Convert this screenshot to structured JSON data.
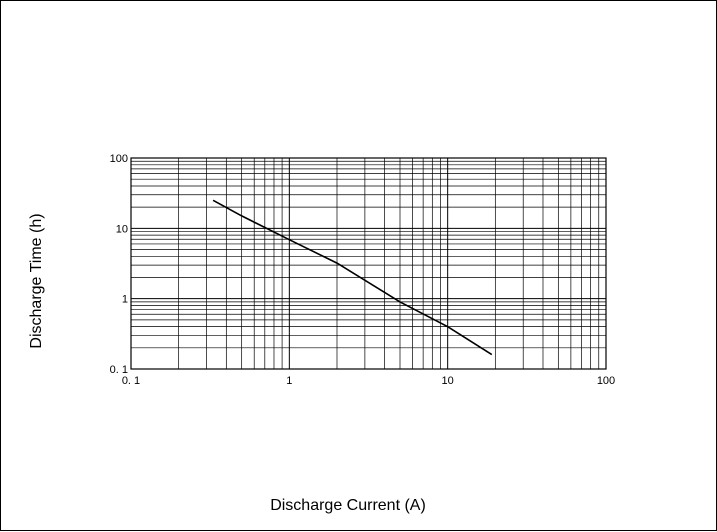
{
  "chart_data": {
    "type": "line",
    "title": "",
    "xlabel": "Discharge Current (A)",
    "ylabel": "Discharge Time (h)",
    "x_scale": "log",
    "y_scale": "log",
    "xlim": [
      0.1,
      100
    ],
    "ylim": [
      0.1,
      100
    ],
    "x_ticks": [
      "0. 1",
      "1",
      "10",
      "100"
    ],
    "y_ticks": [
      "0. 1",
      "1",
      "10",
      "100"
    ],
    "grid": true,
    "legend": "none",
    "line_color": "#000000",
    "series": [
      {
        "x": [
          0.33,
          0.5,
          1,
          2,
          5,
          10,
          19
        ],
        "y": [
          25,
          15,
          6.9,
          3.2,
          0.9,
          0.4,
          0.16
        ]
      }
    ]
  }
}
